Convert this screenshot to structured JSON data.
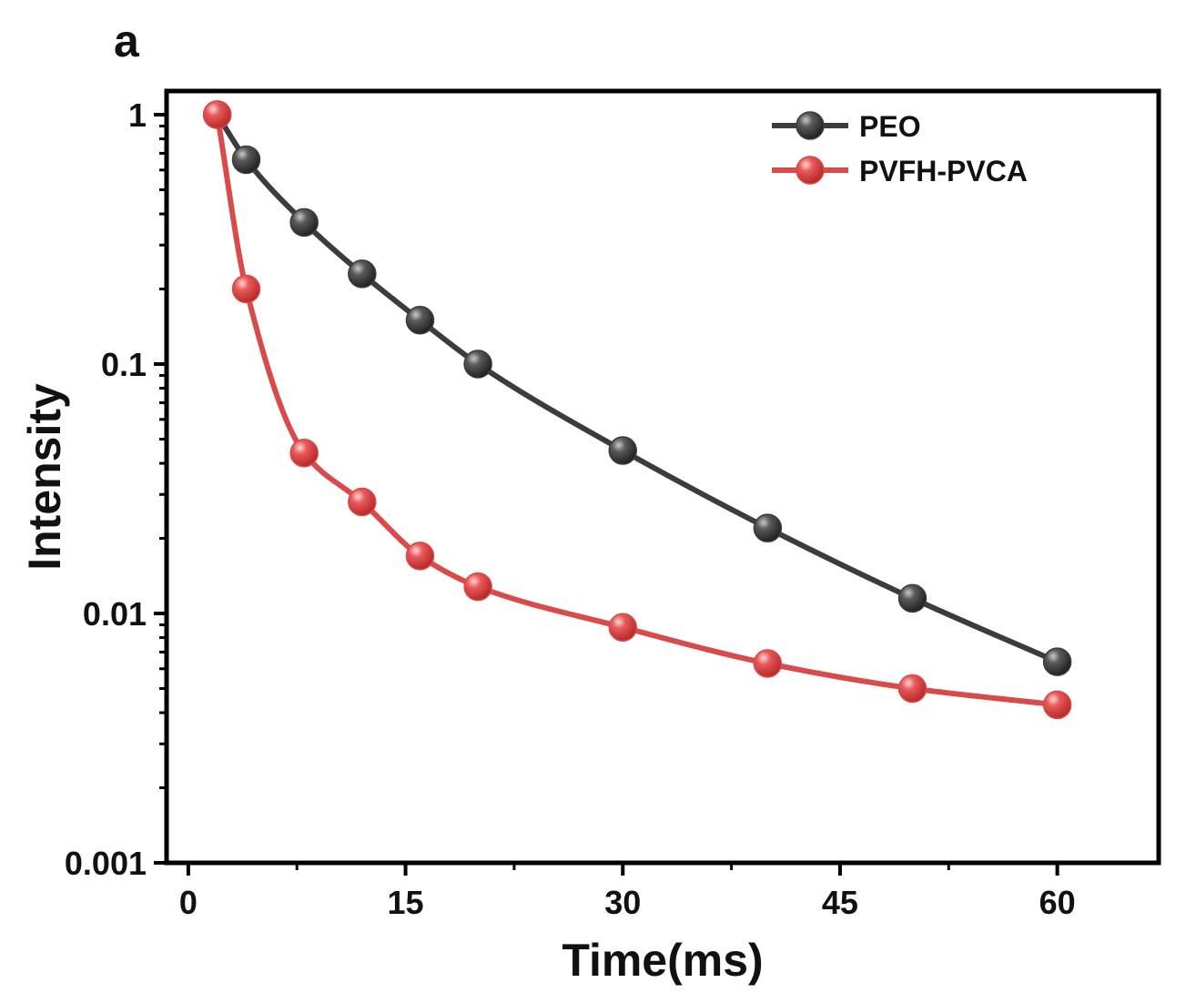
{
  "panel_label": "a",
  "chart_data": {
    "type": "line",
    "xlabel": "Time(ms)",
    "ylabel": "Intensity",
    "y_scale": "log",
    "xlim": [
      -1.5,
      67
    ],
    "ylim": [
      0.001,
      1.2
    ],
    "x_ticks": [
      0,
      15,
      30,
      45,
      60
    ],
    "x_tick_labels": [
      "0",
      "15",
      "30",
      "45",
      "60"
    ],
    "y_ticks": [
      1,
      0.1,
      0.01,
      0.001
    ],
    "y_tick_labels": [
      "1",
      "0.1",
      "0.01",
      "0.001"
    ],
    "legend_position": "top-right",
    "grid": false,
    "series": [
      {
        "name": "PEO",
        "color": "#3c3c3c",
        "marker_color": "#4a4a4a",
        "x": [
          2,
          4,
          8,
          12,
          16,
          20,
          30,
          40,
          50,
          60
        ],
        "y": [
          1.0,
          0.66,
          0.37,
          0.23,
          0.15,
          0.1,
          0.045,
          0.022,
          0.0115,
          0.0064
        ]
      },
      {
        "name": "PVFH-PVCA",
        "color": "#d94a4a",
        "marker_color": "#e05555",
        "x": [
          2,
          4,
          8,
          12,
          16,
          20,
          30,
          40,
          50,
          60
        ],
        "y": [
          1.0,
          0.2,
          0.044,
          0.028,
          0.017,
          0.0128,
          0.0088,
          0.0063,
          0.005,
          0.0043
        ]
      }
    ]
  }
}
